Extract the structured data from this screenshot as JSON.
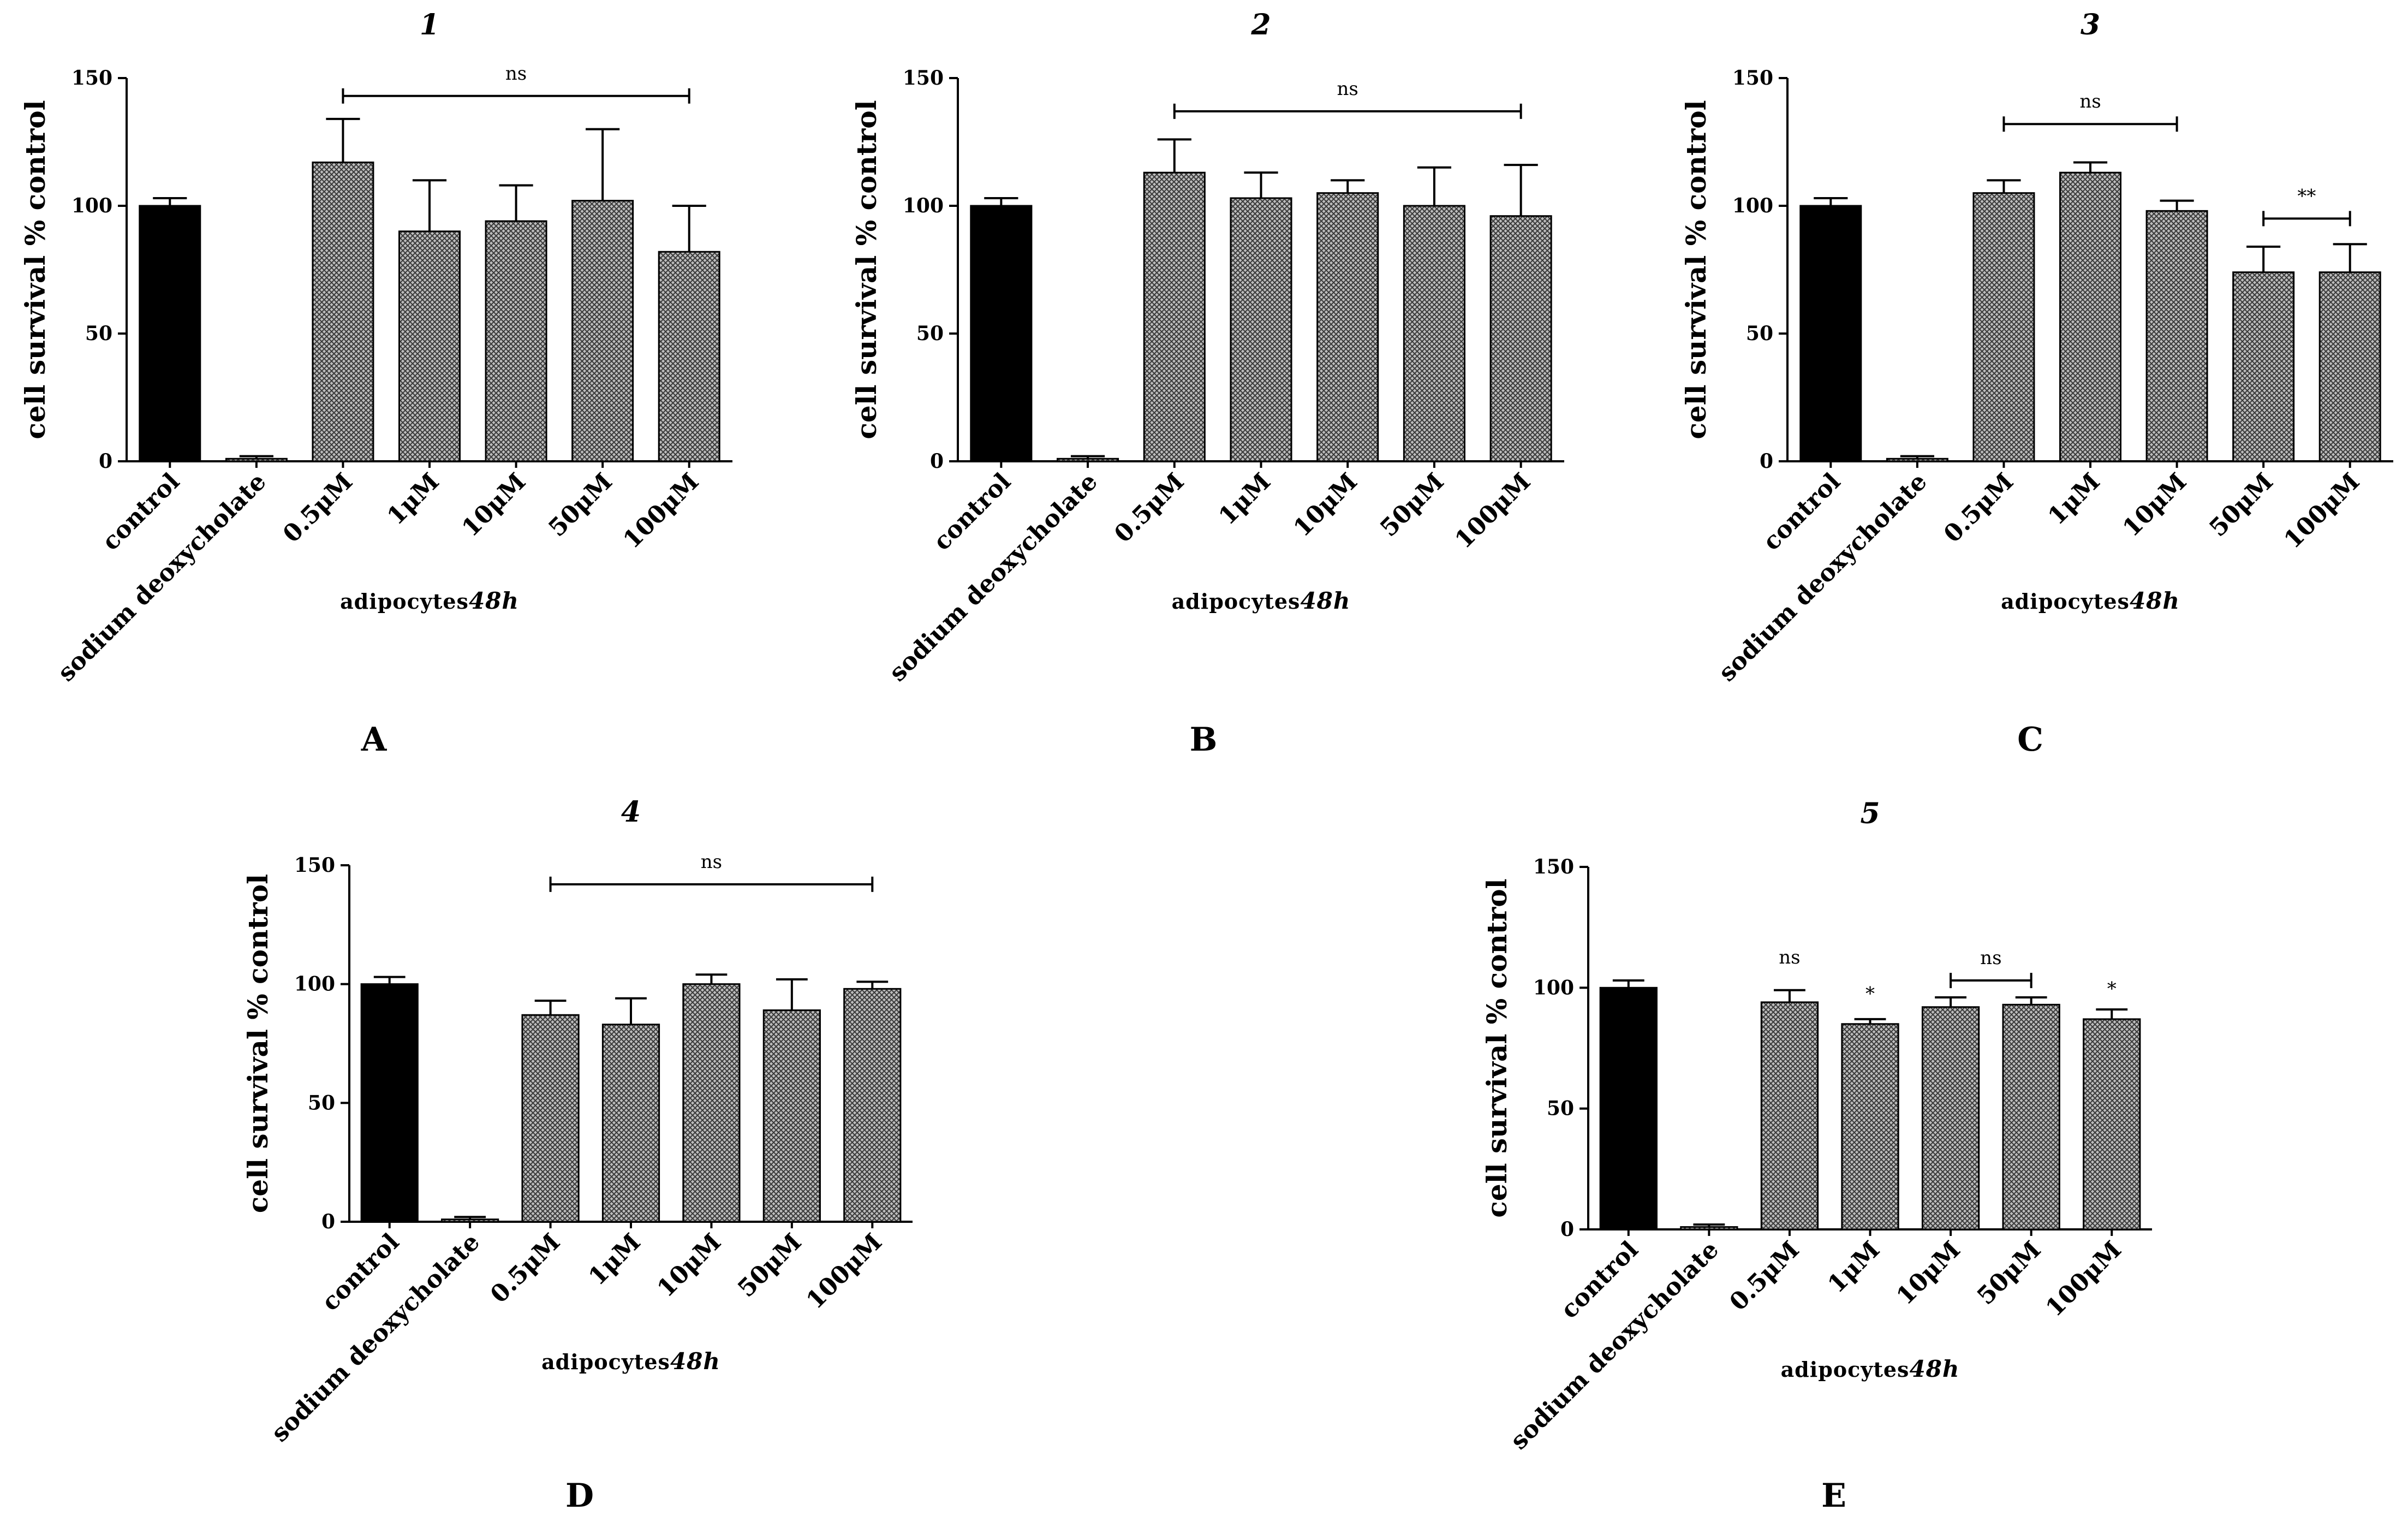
{
  "colors": {
    "control_bar": "#000000",
    "treatment_bar": "#8a8a8a",
    "axis": "#000000",
    "background": "#ffffff"
  },
  "chart_data": [
    {
      "panel": "A",
      "title": "1",
      "type": "bar",
      "categories": [
        "control",
        "sodium deoxycholate",
        "0.5μM",
        "1μM",
        "10μM",
        "50μM",
        "100μM"
      ],
      "values": [
        100,
        1,
        117,
        90,
        94,
        102,
        82
      ],
      "errors": [
        3,
        1,
        17,
        20,
        14,
        28,
        18
      ],
      "ylabel": "cell survival % control",
      "xlabel_plain": "adipocytes",
      "xlabel_em": "48h",
      "ylim": [
        0,
        150
      ],
      "yticks": [
        0,
        50,
        100,
        150
      ],
      "annotations": [
        {
          "text": "ns",
          "type": "bracket",
          "from": 2,
          "to": 6,
          "y": 143
        }
      ]
    },
    {
      "panel": "B",
      "title": "2",
      "type": "bar",
      "categories": [
        "control",
        "sodium deoxycholate",
        "0.5μM",
        "1μM",
        "10μM",
        "50μM",
        "100μM"
      ],
      "values": [
        100,
        1,
        113,
        103,
        105,
        100,
        96
      ],
      "errors": [
        3,
        1,
        13,
        10,
        5,
        15,
        20
      ],
      "ylabel": "cell survival % control",
      "xlabel_plain": "adipocytes",
      "xlabel_em": "48h",
      "ylim": [
        0,
        150
      ],
      "yticks": [
        0,
        50,
        100,
        150
      ],
      "annotations": [
        {
          "text": "ns",
          "type": "bracket",
          "from": 2,
          "to": 6,
          "y": 137
        }
      ]
    },
    {
      "panel": "C",
      "title": "3",
      "type": "bar",
      "categories": [
        "control",
        "sodium deoxycholate",
        "0.5μM",
        "1μM",
        "10μM",
        "50μM",
        "100μM"
      ],
      "values": [
        100,
        1,
        105,
        113,
        98,
        74,
        74
      ],
      "errors": [
        3,
        1,
        5,
        4,
        4,
        10,
        11
      ],
      "ylabel": "cell survival % control",
      "xlabel_plain": "adipocytes",
      "xlabel_em": "48h",
      "ylim": [
        0,
        150
      ],
      "yticks": [
        0,
        50,
        100,
        150
      ],
      "annotations": [
        {
          "text": "ns",
          "type": "bracket",
          "from": 2,
          "to": 4,
          "y": 132
        },
        {
          "text": "**",
          "type": "bracket",
          "from": 5,
          "to": 6,
          "y": 95
        }
      ]
    },
    {
      "panel": "D",
      "title": "4",
      "type": "bar",
      "categories": [
        "control",
        "sodium deoxycholate",
        "0.5μM",
        "1μM",
        "10μM",
        "50μM",
        "100μM"
      ],
      "values": [
        100,
        1,
        87,
        83,
        100,
        89,
        98
      ],
      "errors": [
        3,
        1,
        6,
        11,
        4,
        13,
        3
      ],
      "ylabel": "cell survival % control",
      "xlabel_plain": "adipocytes",
      "xlabel_em": "48h",
      "ylim": [
        0,
        150
      ],
      "yticks": [
        0,
        50,
        100,
        150
      ],
      "annotations": [
        {
          "text": "ns",
          "type": "bracket",
          "from": 2,
          "to": 6,
          "y": 142
        }
      ]
    },
    {
      "panel": "E",
      "title": "5",
      "type": "bar",
      "categories": [
        "control",
        "sodium deoxycholate",
        "0.5μM",
        "1μM",
        "10μM",
        "50μM",
        "100μM"
      ],
      "values": [
        100,
        1,
        94,
        85,
        92,
        93,
        87
      ],
      "errors": [
        3,
        1,
        5,
        2,
        4,
        3,
        4
      ],
      "ylabel": "cell survival % control",
      "xlabel_plain": "adipocytes",
      "xlabel_em": "48h",
      "ylim": [
        0,
        150
      ],
      "yticks": [
        0,
        50,
        100,
        150
      ],
      "annotations": [
        {
          "text": "ns",
          "type": "label",
          "at": 2,
          "y": 110
        },
        {
          "text": "*",
          "type": "label",
          "at": 3,
          "y": 95
        },
        {
          "text": "ns",
          "type": "bracket",
          "from": 4,
          "to": 5,
          "y": 103
        },
        {
          "text": "*",
          "type": "label",
          "at": 6,
          "y": 97
        }
      ]
    }
  ]
}
